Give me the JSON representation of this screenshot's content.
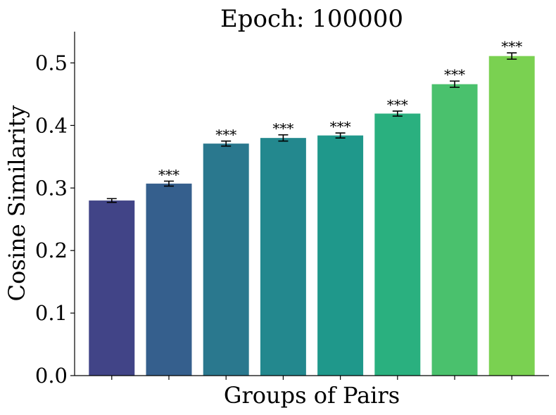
{
  "chart_data": {
    "type": "bar",
    "title": "Epoch: 100000",
    "xlabel": "Groups of Pairs",
    "ylabel": "Cosine Similarity",
    "ylim": [
      0,
      0.55
    ],
    "yticks": [
      0.0,
      0.1,
      0.2,
      0.3,
      0.4,
      0.5
    ],
    "ytick_labels": [
      "0.0",
      "0.1",
      "0.2",
      "0.3",
      "0.4",
      "0.5"
    ],
    "categories": [
      "",
      "",
      "",
      "",
      "",
      "",
      "",
      ""
    ],
    "values": [
      0.28,
      0.307,
      0.371,
      0.38,
      0.384,
      0.419,
      0.466,
      0.511
    ],
    "errors": [
      0.003,
      0.004,
      0.004,
      0.005,
      0.004,
      0.004,
      0.005,
      0.005
    ],
    "significance": [
      "",
      "***",
      "***",
      "***",
      "***",
      "***",
      "***",
      "***"
    ],
    "colors": [
      "#414487",
      "#355f8d",
      "#2a788e",
      "#23888e",
      "#1f988b",
      "#2ab07f",
      "#4ac16d",
      "#7ad151"
    ],
    "grid": false,
    "legend": "none"
  }
}
